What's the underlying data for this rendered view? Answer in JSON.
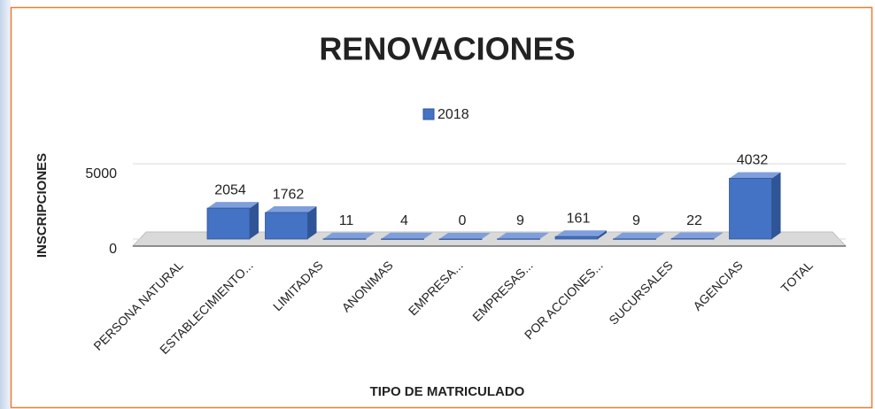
{
  "chart_data": {
    "type": "bar3d",
    "title": "RENOVACIONES",
    "categories": [
      "PERSONA NATURAL",
      "ESTABLECIMIENTO...",
      "LIMITADAS",
      "ANONIMAS",
      "EMPRESA...",
      "EMPRESAS...",
      "POR ACCIONES...",
      "SUCURSALES",
      "AGENCIAS",
      "TOTAL"
    ],
    "series": [
      {
        "name": "2018",
        "color": "#4472c4",
        "values": [
          2054,
          1762,
          11,
          4,
          0,
          9,
          161,
          9,
          22,
          4032
        ]
      }
    ],
    "ylim": [
      0,
      5000
    ],
    "yticks": [
      0,
      5000
    ],
    "grid": true,
    "legend": "top",
    "xlabel": "TIPO DE MATRICULADO",
    "ylabel": "INSCRIPCIONES"
  }
}
